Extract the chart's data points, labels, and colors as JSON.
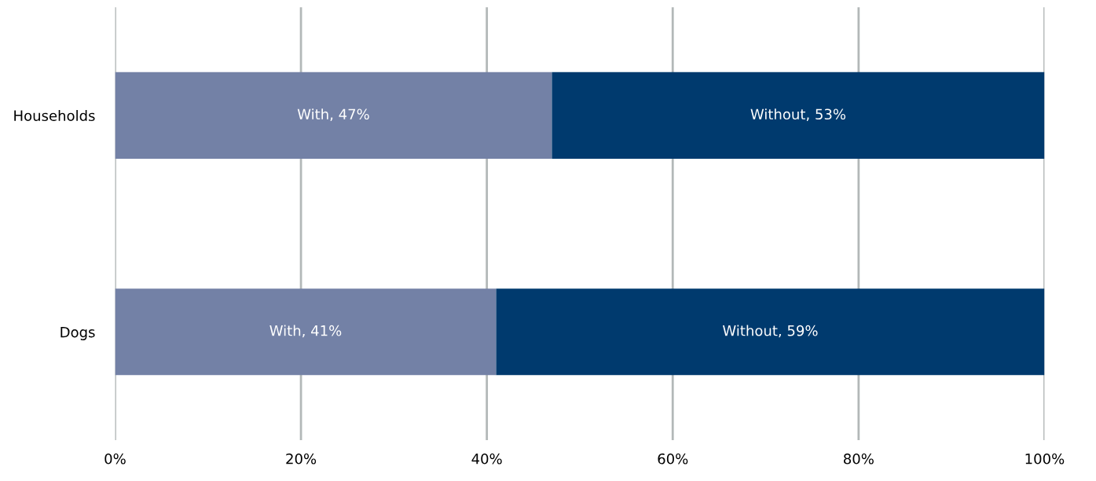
{
  "chart_data": {
    "type": "bar",
    "orientation": "horizontal",
    "stacked": true,
    "categories": [
      "Households",
      "Dogs"
    ],
    "series": [
      {
        "color": "#7381a6",
        "values": [
          47,
          41
        ],
        "value_labels": [
          "With, 47%",
          "With, 41%"
        ]
      },
      {
        "color": "#003a6e",
        "values": [
          53,
          59
        ],
        "value_labels": [
          "Without, 53%",
          "Without, 59%"
        ]
      }
    ],
    "xlim": [
      0,
      100
    ],
    "xticks": [
      {
        "value": 0,
        "label": "0%"
      },
      {
        "value": 20,
        "label": "20%"
      },
      {
        "value": 40,
        "label": "40%"
      },
      {
        "value": 60,
        "label": "60%"
      },
      {
        "value": 80,
        "label": "80%"
      },
      {
        "value": 100,
        "label": "100%"
      }
    ],
    "grid": "x",
    "legend": false
  }
}
